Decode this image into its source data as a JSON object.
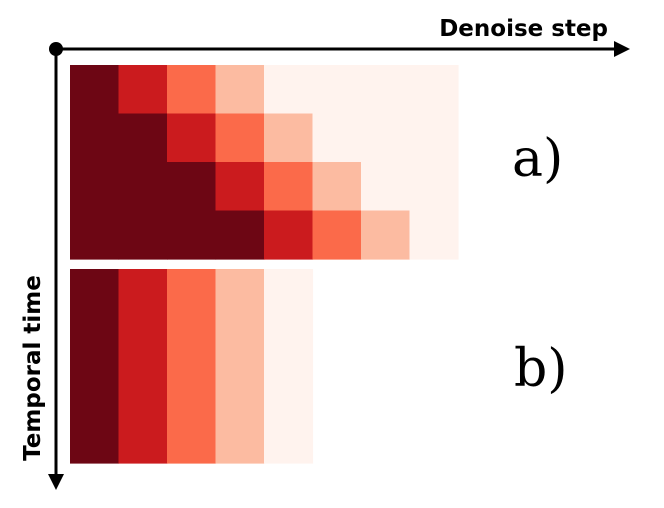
{
  "x_axis_label": "Denoise step",
  "y_axis_label": "Temporal time",
  "palette": [
    "#6d0614",
    "#cb1b1e",
    "#fb6a4a",
    "#fcbba1",
    "#fff3ee"
  ],
  "panels": [
    {
      "label": "a)",
      "grid": [
        [
          0,
          1,
          2,
          3,
          4,
          4,
          4,
          4
        ],
        [
          0,
          0,
          1,
          2,
          3,
          4,
          4,
          4
        ],
        [
          0,
          0,
          0,
          1,
          2,
          3,
          4,
          4
        ],
        [
          0,
          0,
          0,
          0,
          1,
          2,
          3,
          4
        ]
      ]
    },
    {
      "label": "b)",
      "grid": [
        [
          0,
          1,
          2,
          3,
          4
        ],
        [
          0,
          1,
          2,
          3,
          4
        ],
        [
          0,
          1,
          2,
          3,
          4
        ],
        [
          0,
          1,
          2,
          3,
          4
        ]
      ]
    }
  ]
}
